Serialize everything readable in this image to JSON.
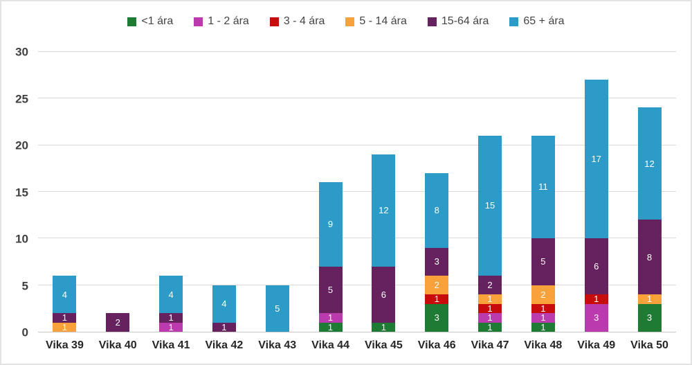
{
  "frame": {
    "border_color": "#e3e3e3",
    "background": "#ffffff"
  },
  "colors": {
    "gridline": "#d9d9d9",
    "axis_line": "#c6c6c6",
    "ytick_text": "#404040",
    "xtick_text": "#262626",
    "legend_text": "#444444",
    "data_label_text": "#ffffff"
  },
  "chart_data": {
    "type": "bar",
    "subtype": "stacked-vertical",
    "title": "",
    "xlabel": "",
    "ylabel": "",
    "ylim": [
      0,
      30
    ],
    "yticks": [
      0,
      5,
      10,
      15,
      20,
      25,
      30
    ],
    "grid": true,
    "legend_position": "top",
    "categories": [
      "Vika 39",
      "Vika 40",
      "Vika 41",
      "Vika 42",
      "Vika 43",
      "Vika 44",
      "Vika 45",
      "Vika 46",
      "Vika 47",
      "Vika 48",
      "Vika 49",
      "Vika 50"
    ],
    "series": [
      {
        "name": "<1 ára",
        "color": "#1e7b34",
        "values": [
          0,
          0,
          0,
          0,
          0,
          1,
          1,
          3,
          1,
          1,
          0,
          3
        ]
      },
      {
        "name": "1 - 2 ára",
        "color": "#bb3bae",
        "values": [
          0,
          0,
          1,
          0,
          0,
          1,
          0,
          0,
          1,
          1,
          3,
          0
        ]
      },
      {
        "name": "3 - 4 ára",
        "color": "#c80b0b",
        "values": [
          0,
          0,
          0,
          0,
          0,
          0,
          0,
          1,
          1,
          1,
          1,
          0
        ]
      },
      {
        "name": "5 - 14 ára",
        "color": "#f9a23c",
        "values": [
          1,
          0,
          0,
          0,
          0,
          0,
          0,
          2,
          1,
          2,
          0,
          1
        ]
      },
      {
        "name": "15-64 ára",
        "color": "#65225f",
        "values": [
          1,
          2,
          1,
          1,
          0,
          5,
          6,
          3,
          2,
          5,
          6,
          8
        ]
      },
      {
        "name": "65 + ára",
        "color": "#2d9bc7",
        "values": [
          4,
          0,
          4,
          4,
          5,
          9,
          12,
          8,
          15,
          11,
          17,
          12
        ]
      }
    ],
    "totals": [
      6,
      2,
      6,
      5,
      5,
      16,
      19,
      17,
      21,
      21,
      27,
      24
    ]
  }
}
